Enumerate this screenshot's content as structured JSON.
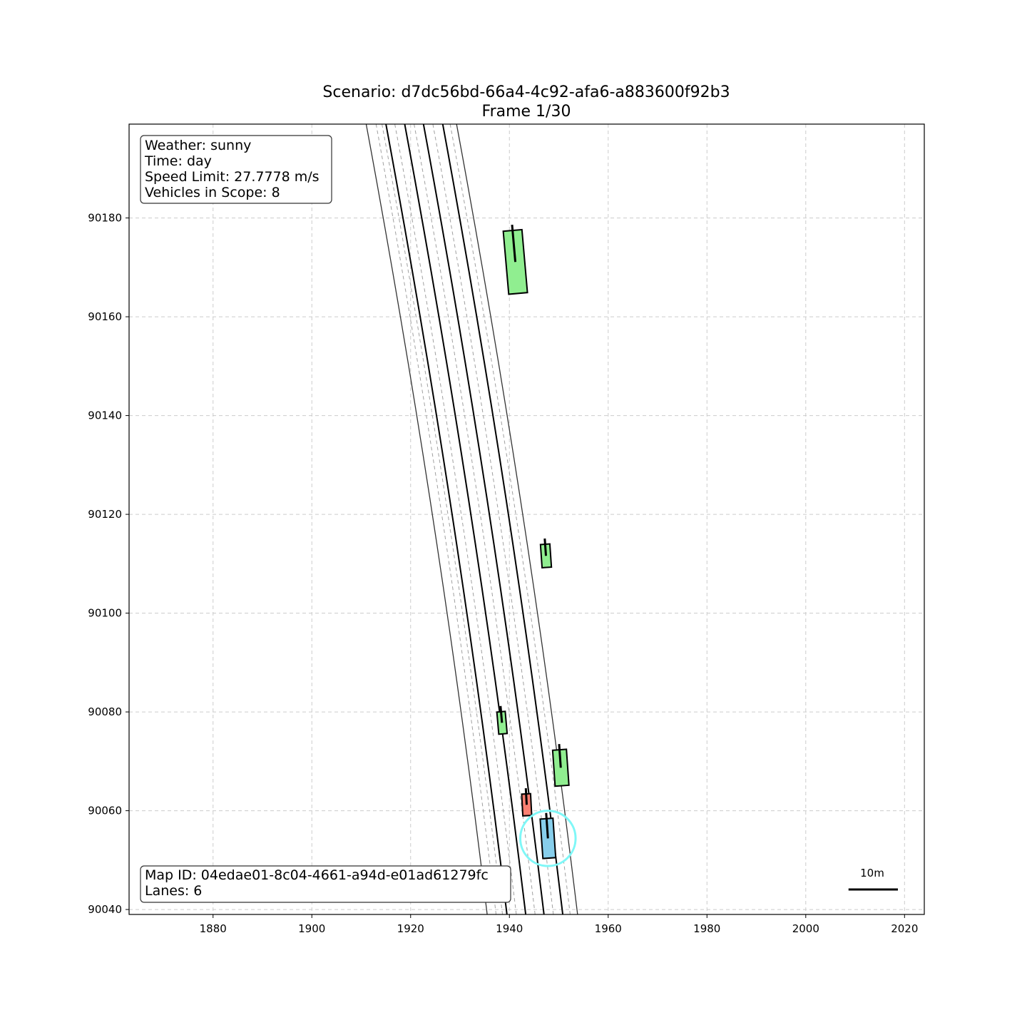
{
  "title": {
    "line1": "Scenario: d7dc56bd-66a4-4c92-afa6-a883600f92b3",
    "line2": "Frame 1/30"
  },
  "info_box": {
    "weather": "Weather: sunny",
    "time": "Time: day",
    "speed_limit": "Speed Limit: 27.7778 m/s",
    "vehicles": "Vehicles in Scope: 8"
  },
  "map_box": {
    "map_id": "Map ID: 04edae01-8c04-4661-a94d-e01ad61279fc",
    "lanes": "Lanes: 6"
  },
  "scale_bar": {
    "label": "10m",
    "length_m": 10
  },
  "colors": {
    "ego": "#87ceeb",
    "other_vehicle": "#90ee90",
    "target_vehicle": "#fa8072",
    "ego_highlight": "#7ff7f7",
    "grid": "#cccccc",
    "lane_solid": "#000000",
    "lane_dashed": "#a0a0a0"
  },
  "chart_data": {
    "type": "map",
    "xlim": [
      1863,
      2024
    ],
    "ylim": [
      90039,
      90199
    ],
    "x_ticks": [
      1880,
      1900,
      1920,
      1940,
      1960,
      1980,
      2000,
      2020
    ],
    "y_ticks": [
      90040,
      90060,
      90080,
      90100,
      90120,
      90140,
      90160,
      90180
    ],
    "grid": true,
    "lane_lines": [
      {
        "style": "solid",
        "width": "thin",
        "points": [
          [
            1911.0,
            90199
          ],
          [
            1935.5,
            90039
          ]
        ]
      },
      {
        "style": "solid",
        "width": "thick",
        "points": [
          [
            1915.0,
            90199
          ],
          [
            1939.5,
            90039
          ]
        ]
      },
      {
        "style": "solid",
        "width": "thick",
        "points": [
          [
            1918.8,
            90199
          ],
          [
            1943.3,
            90039
          ]
        ]
      },
      {
        "style": "solid",
        "width": "thick",
        "points": [
          [
            1922.6,
            90199
          ],
          [
            1947.0,
            90039
          ]
        ]
      },
      {
        "style": "solid",
        "width": "thick",
        "points": [
          [
            1926.5,
            90199
          ],
          [
            1950.8,
            90039
          ]
        ]
      },
      {
        "style": "solid",
        "width": "thin",
        "points": [
          [
            1929.3,
            90199
          ],
          [
            1953.8,
            90039
          ]
        ]
      },
      {
        "style": "dashed",
        "points": [
          [
            1913.0,
            90199
          ],
          [
            1937.3,
            90039
          ]
        ]
      },
      {
        "style": "dashed",
        "points": [
          [
            1914.2,
            90199
          ],
          [
            1938.6,
            90039
          ]
        ]
      },
      {
        "style": "dashed",
        "points": [
          [
            1916.8,
            90199
          ],
          [
            1941.4,
            90039
          ]
        ]
      },
      {
        "style": "dashed",
        "points": [
          [
            1920.7,
            90199
          ],
          [
            1945.2,
            90039
          ]
        ]
      },
      {
        "style": "dashed",
        "points": [
          [
            1924.5,
            90199
          ],
          [
            1948.9,
            90039
          ]
        ]
      },
      {
        "style": "dashed",
        "points": [
          [
            1928.0,
            90199
          ],
          [
            1952.3,
            90039
          ]
        ]
      }
    ],
    "vehicles": [
      {
        "role": "other",
        "x": 1941.2,
        "y": 90171.1,
        "length": 12.8,
        "width": 3.8,
        "heading_deg": 95
      },
      {
        "role": "other",
        "x": 1947.4,
        "y": 90111.6,
        "length": 4.7,
        "width": 1.9,
        "heading_deg": 94
      },
      {
        "role": "other",
        "x": 1938.5,
        "y": 90077.8,
        "length": 4.5,
        "width": 1.7,
        "heading_deg": 95
      },
      {
        "role": "other",
        "x": 1950.4,
        "y": 90068.7,
        "length": 7.3,
        "width": 2.8,
        "heading_deg": 94
      },
      {
        "role": "target",
        "x": 1943.5,
        "y": 90061.2,
        "length": 4.4,
        "width": 1.8,
        "heading_deg": 93
      },
      {
        "role": "ego",
        "x": 1947.8,
        "y": 90054.4,
        "length": 8.0,
        "width": 2.6,
        "heading_deg": 94
      }
    ],
    "ego_highlight_radius_m": 5.6
  }
}
